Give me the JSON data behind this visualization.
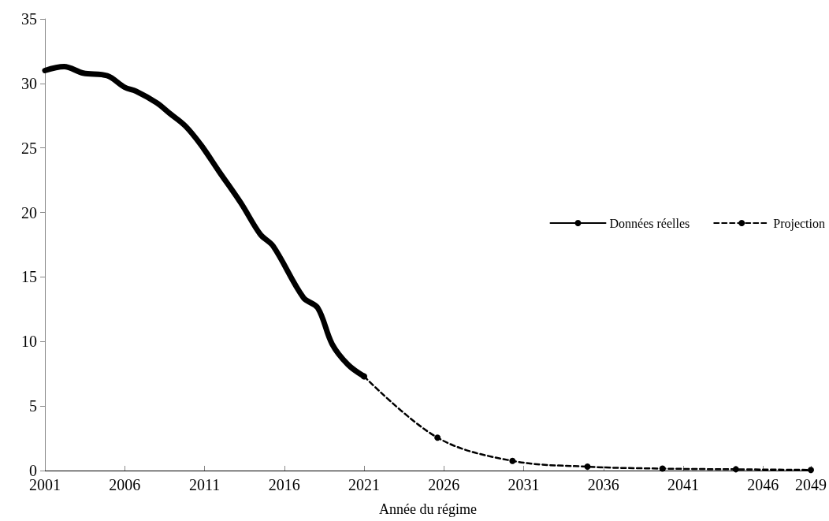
{
  "chart_data": {
    "type": "line",
    "xlabel": "Année du régime",
    "xlim": [
      2001,
      2049
    ],
    "xticks": [
      2001,
      2006,
      2011,
      2016,
      2021,
      2026,
      2031,
      2036,
      2041,
      2046,
      2049
    ],
    "ylim": [
      0,
      35
    ],
    "yticks": [
      0,
      5,
      10,
      15,
      20,
      25,
      30,
      35
    ],
    "grid": false,
    "legend": "right",
    "series": [
      {
        "name": "Données réelles",
        "color": "#000000",
        "line_style": "solid",
        "marker": "none",
        "x": [
          2001,
          2002.2,
          2003.4,
          2004.9,
          2006,
          2006.7,
          2008,
          2008.8,
          2009.8,
          2010.8,
          2011.9,
          2013.3,
          2014.5,
          2015.3,
          2017.2,
          2018.1,
          2019,
          2020,
          2021
        ],
        "values": [
          31.0,
          31.3,
          30.8,
          30.6,
          29.7,
          29.4,
          28.5,
          27.7,
          26.7,
          25.2,
          23.2,
          20.7,
          18.3,
          17.4,
          13.4,
          12.6,
          9.8,
          8.2,
          7.3
        ]
      },
      {
        "name": "Projection",
        "color": "#000000",
        "line_style": "dashed",
        "marker": "circle",
        "x": [
          2021,
          2025.6,
          2030.3,
          2035.0,
          2039.7,
          2044.3,
          2049
        ],
        "values": [
          7.3,
          2.55,
          0.75,
          0.3,
          0.15,
          0.1,
          0.05
        ]
      }
    ]
  }
}
